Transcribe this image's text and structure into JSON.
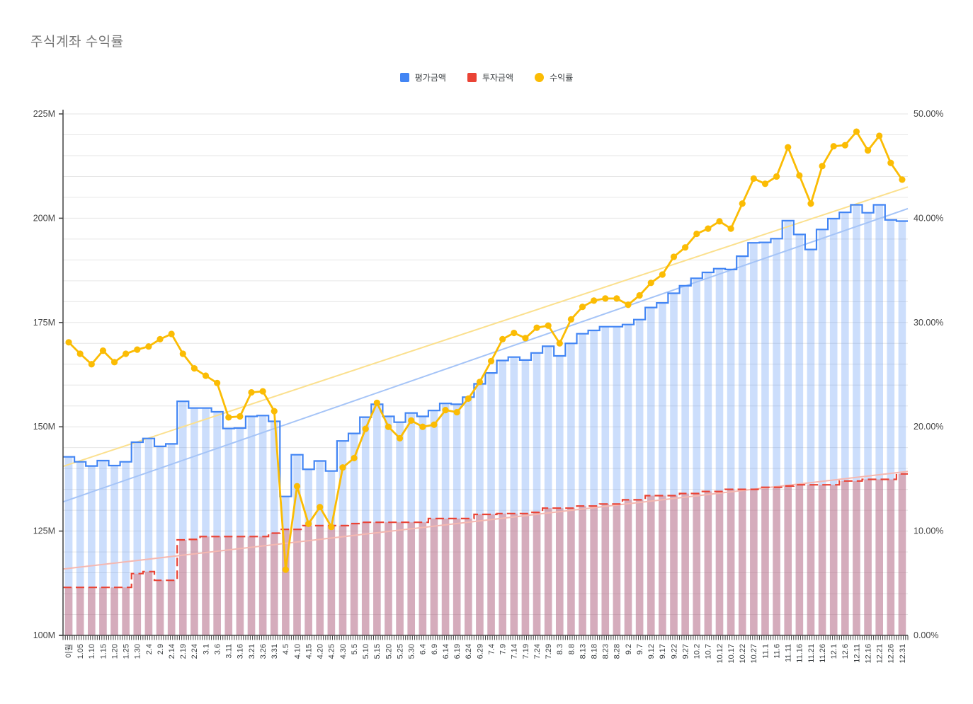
{
  "title": "주식계좌 수익률",
  "legend": {
    "items": [
      {
        "label": "평가금액",
        "color": "#4285F4",
        "shape": "square"
      },
      {
        "label": "투자금액",
        "color": "#EA4335",
        "shape": "square"
      },
      {
        "label": "수익률",
        "color": "#FBBC04",
        "shape": "circle"
      }
    ]
  },
  "left_axis": {
    "labels": [
      "225M",
      "200M",
      "175M",
      "150M",
      "125M",
      "100M"
    ],
    "min": 100,
    "max": 225,
    "label_step": 25,
    "grid_step": 5,
    "unit": "M"
  },
  "right_axis": {
    "labels": [
      "50.00%",
      "40.00%",
      "30.00%",
      "20.00%",
      "10.00%",
      "0.00%"
    ],
    "min": 0,
    "max": 50,
    "label_step": 10
  },
  "chart_data": {
    "type": "combo",
    "title": "주식계좌 수익률",
    "grid": true,
    "legend_position": "top",
    "ylim_left": [
      100,
      225
    ],
    "ylim_right": [
      0,
      50
    ],
    "categories": [
      "이월",
      "1.05",
      "1.10",
      "1.15",
      "1.20",
      "1.25",
      "1.30",
      "2.4",
      "2.9",
      "2.14",
      "2.19",
      "2.24",
      "3.1",
      "3.6",
      "3.11",
      "3.16",
      "3.21",
      "3.26",
      "3.31",
      "4.5",
      "4.10",
      "4.15",
      "4.20",
      "4.25",
      "4.30",
      "5.5",
      "5.10",
      "5.15",
      "5.20",
      "5.25",
      "5.30",
      "6.4",
      "6.9",
      "6.14",
      "6.19",
      "6.24",
      "6.29",
      "7.4",
      "7.9",
      "7.14",
      "7.19",
      "7.24",
      "7.29",
      "8.3",
      "8.8",
      "8.13",
      "8.18",
      "8.23",
      "8.28",
      "9.2",
      "9.7",
      "9.12",
      "9.17",
      "9.22",
      "9.27",
      "10.2",
      "10.7",
      "10.12",
      "10.17",
      "10.22",
      "10.27",
      "11.1",
      "11.6",
      "11.11",
      "11.16",
      "11.21",
      "11.26",
      "12.1",
      "12.6",
      "12.11",
      "12.16",
      "12.21",
      "12.26",
      "12.31"
    ],
    "series": [
      {
        "name": "평가금액",
        "render": "bar+stepline",
        "axis": "left",
        "unit": "M KRW",
        "color": "#4285F4",
        "bar_fill": "rgba(66,133,244,0.27)",
        "values": [
          142.8,
          141.6,
          140.6,
          141.9,
          140.7,
          141.6,
          146.3,
          147.2,
          145.3,
          145.9,
          156.1,
          154.5,
          154.5,
          153.6,
          149.6,
          149.7,
          152.5,
          152.7,
          151.3,
          133.3,
          143.3,
          139.8,
          141.8,
          139.4,
          146.6,
          148.4,
          152.3,
          155.4,
          152.5,
          151.1,
          153.3,
          152.5,
          153.9,
          155.6,
          155.4,
          157.1,
          160.3,
          162.9,
          165.9,
          166.7,
          166.0,
          167.7,
          169.3,
          167.0,
          170.0,
          172.3,
          173.1,
          174.0,
          174.0,
          174.5,
          175.7,
          178.6,
          179.7,
          182.0,
          183.8,
          185.6,
          187.0,
          187.9,
          187.7,
          190.9,
          194.1,
          194.2,
          195.1,
          199.4,
          196.1,
          192.5,
          197.3,
          199.9,
          201.4,
          203.2,
          201.3,
          203.2,
          199.6,
          199.3
        ]
      },
      {
        "name": "투자금액",
        "render": "bar+stepline",
        "axis": "left",
        "unit": "M KRW",
        "color": "#EA4335",
        "bar_fill": "rgba(234,67,53,0.32)",
        "line_dash": "12 6",
        "values": [
          111.5,
          111.5,
          111.5,
          111.5,
          111.5,
          111.5,
          114.8,
          115.3,
          113.2,
          113.2,
          122.9,
          123.0,
          123.7,
          123.7,
          123.7,
          123.7,
          123.7,
          123.7,
          124.5,
          125.4,
          125.4,
          126.3,
          126.3,
          126.3,
          126.3,
          126.8,
          127.1,
          127.1,
          127.1,
          127.1,
          127.1,
          127.1,
          128.0,
          128.0,
          128.0,
          128.0,
          129.0,
          129.0,
          129.2,
          129.2,
          129.2,
          129.5,
          130.5,
          130.5,
          130.5,
          131.0,
          131.0,
          131.5,
          131.5,
          132.5,
          132.5,
          133.5,
          133.5,
          133.5,
          134.0,
          134.0,
          134.5,
          134.5,
          135.0,
          135.0,
          135.0,
          135.5,
          135.5,
          135.8,
          136.1,
          136.1,
          136.1,
          136.1,
          137.0,
          137.0,
          137.4,
          137.4,
          137.4,
          138.7
        ]
      },
      {
        "name": "수익률",
        "render": "line+markers",
        "axis": "right",
        "unit": "%",
        "color": "#FBBC04",
        "values": [
          28.1,
          27.0,
          26.0,
          27.3,
          26.2,
          27.0,
          27.4,
          27.7,
          28.4,
          28.9,
          27.0,
          25.6,
          24.9,
          24.2,
          20.9,
          21.0,
          23.3,
          23.4,
          21.5,
          6.3,
          14.3,
          10.7,
          12.3,
          10.4,
          16.1,
          17.0,
          19.8,
          22.3,
          20.0,
          18.9,
          20.6,
          20.0,
          20.2,
          21.6,
          21.4,
          22.7,
          24.3,
          26.3,
          28.4,
          29.0,
          28.5,
          29.5,
          29.7,
          28.0,
          30.3,
          31.5,
          32.1,
          32.3,
          32.3,
          31.7,
          32.6,
          33.8,
          34.6,
          36.3,
          37.2,
          38.5,
          39.0,
          39.7,
          39.0,
          41.4,
          43.8,
          43.3,
          44.0,
          46.8,
          44.1,
          41.4,
          45.0,
          46.9,
          47.0,
          48.3,
          46.5,
          47.9,
          45.3,
          43.7
        ]
      }
    ],
    "trendlines": [
      {
        "series": "평가금액",
        "axis": "left",
        "start": 132.0,
        "end": 202.3,
        "color": "#A5C4F7"
      },
      {
        "series": "투자금액",
        "axis": "left",
        "start": 115.9,
        "end": 139.3,
        "color": "#F5B8B1"
      },
      {
        "series": "수익률",
        "axis": "right",
        "start": 16.2,
        "end": 43.0,
        "color": "#FBE08E"
      }
    ]
  }
}
